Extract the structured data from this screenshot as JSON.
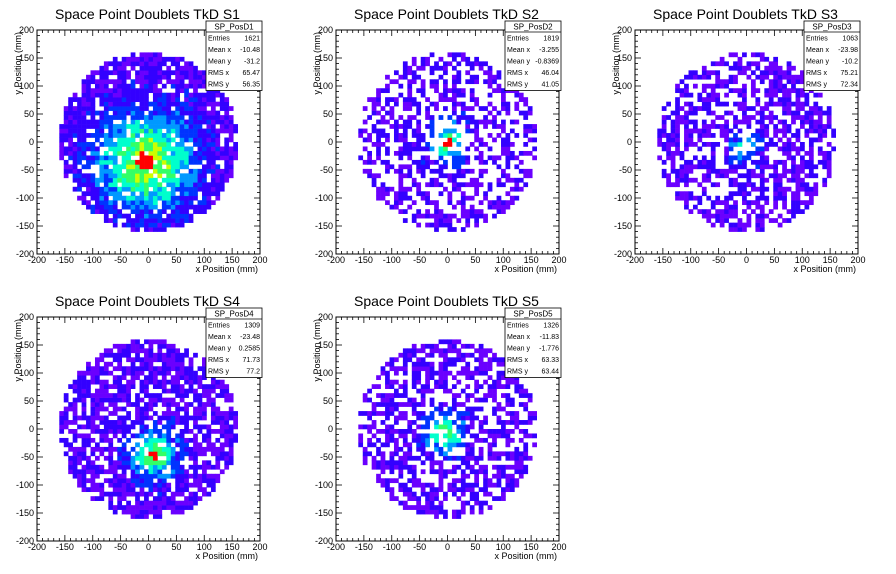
{
  "chart_data": [
    {
      "type": "heatmap",
      "title": "Space Point Doublets TkD S1",
      "xlabel": "x Position (mm)",
      "ylabel": "y Position (mm)",
      "xlim": [
        -200,
        200
      ],
      "ylim": [
        -200,
        200
      ],
      "xticks": [
        "-200",
        "-150",
        "-100",
        "-50",
        "0",
        "50",
        "100",
        "150",
        "200"
      ],
      "yticks": [
        "-200",
        "-150",
        "-100",
        "-50",
        "0",
        "50",
        "100",
        "150",
        "200"
      ],
      "stats": {
        "name": "SP_PosD1",
        "rows": [
          [
            "Entries",
            "1621"
          ],
          [
            "Mean x",
            "-10.48"
          ],
          [
            "Mean y",
            "-31.2"
          ],
          [
            "RMS x",
            "65.47"
          ],
          [
            "RMS y",
            "56.35"
          ]
        ]
      },
      "hotspot": {
        "x": -5,
        "y": -35
      },
      "spread": 60,
      "density": 0.85,
      "max_level": 0.55
    },
    {
      "type": "heatmap",
      "title": "Space Point Doublets TkD S2",
      "xlabel": "x Position (mm)",
      "ylabel": "y Position (mm)",
      "xlim": [
        -200,
        200
      ],
      "ylim": [
        -200,
        200
      ],
      "xticks": [
        "-200",
        "-150",
        "-100",
        "-50",
        "0",
        "50",
        "100",
        "150",
        "200"
      ],
      "yticks": [
        "-200",
        "-150",
        "-100",
        "-50",
        "0",
        "50",
        "100",
        "150",
        "200"
      ],
      "stats": {
        "name": "SP_PosD2",
        "rows": [
          [
            "Entries",
            "1819"
          ],
          [
            "Mean x",
            "-3.255"
          ],
          [
            "Mean y",
            "-0.8369"
          ],
          [
            "RMS x",
            "46.04"
          ],
          [
            "RMS y",
            "41.05"
          ]
        ]
      },
      "hotspot": {
        "x": 0,
        "y": 0
      },
      "spread": 25,
      "density": 0.5,
      "max_level": 0.45
    },
    {
      "type": "heatmap",
      "title": "Space Point Doublets TkD S3",
      "xlabel": "x Position (mm)",
      "ylabel": "y Position (mm)",
      "xlim": [
        -200,
        200
      ],
      "ylim": [
        -200,
        200
      ],
      "xticks": [
        "-200",
        "-150",
        "-100",
        "-50",
        "0",
        "50",
        "100",
        "150",
        "200"
      ],
      "yticks": [
        "-200",
        "-150",
        "-100",
        "-50",
        "0",
        "50",
        "100",
        "150",
        "200"
      ],
      "stats": {
        "name": "SP_PosD3",
        "rows": [
          [
            "Entries",
            "1063"
          ],
          [
            "Mean x",
            "-23.98"
          ],
          [
            "Mean y",
            "-10.2"
          ],
          [
            "RMS x",
            "75.21"
          ],
          [
            "RMS y",
            "72.34"
          ]
        ]
      },
      "hotspot": {
        "x": -5,
        "y": -10
      },
      "spread": 20,
      "density": 0.6,
      "max_level": 0.3
    },
    {
      "type": "heatmap",
      "title": "Space Point Doublets TkD S4",
      "xlabel": "x Position (mm)",
      "ylabel": "y Position (mm)",
      "xlim": [
        -200,
        200
      ],
      "ylim": [
        -200,
        200
      ],
      "xticks": [
        "-200",
        "-150",
        "-100",
        "-50",
        "0",
        "50",
        "100",
        "150",
        "200"
      ],
      "yticks": [
        "-200",
        "-150",
        "-100",
        "-50",
        "0",
        "50",
        "100",
        "150",
        "200"
      ],
      "stats": {
        "name": "SP_PosD4",
        "rows": [
          [
            "Entries",
            "1309"
          ],
          [
            "Mean x",
            "-23.48"
          ],
          [
            "Mean y",
            "0.2585"
          ],
          [
            "RMS x",
            "71.73"
          ],
          [
            "RMS y",
            "77.2"
          ]
        ]
      },
      "hotspot": {
        "x": 10,
        "y": -45
      },
      "spread": 30,
      "density": 0.75,
      "max_level": 0.5
    },
    {
      "type": "heatmap",
      "title": "Space Point Doublets TkD S5",
      "xlabel": "x Position (mm)",
      "ylabel": "y Position (mm)",
      "xlim": [
        -200,
        200
      ],
      "ylim": [
        -200,
        200
      ],
      "xticks": [
        "-200",
        "-150",
        "-100",
        "-50",
        "0",
        "50",
        "100",
        "150",
        "200"
      ],
      "yticks": [
        "-200",
        "-150",
        "-100",
        "-50",
        "0",
        "50",
        "100",
        "150",
        "200"
      ],
      "stats": {
        "name": "SP_PosD5",
        "rows": [
          [
            "Entries",
            "1326"
          ],
          [
            "Mean x",
            "-11.83"
          ],
          [
            "Mean y",
            "-1.776"
          ],
          [
            "RMS x",
            "63.33"
          ],
          [
            "RMS y",
            "63.44"
          ]
        ]
      },
      "hotspot": {
        "x": -5,
        "y": -5
      },
      "spread": 25,
      "density": 0.6,
      "max_level": 0.45
    }
  ],
  "palette": [
    "#6a00ff",
    "#3300ff",
    "#0033ff",
    "#0099ff",
    "#00ffcc",
    "#33ff66",
    "#ccff00",
    "#ffcc00",
    "#ff6600",
    "#ff0000"
  ]
}
